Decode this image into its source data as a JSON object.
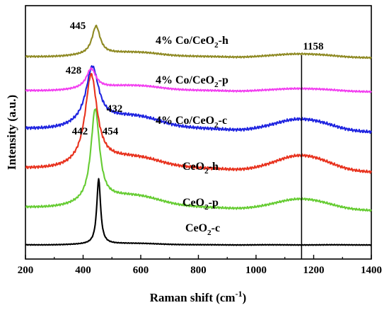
{
  "chart_data": {
    "type": "line",
    "xlabel": "Raman shift (cm",
    "xlabel_sup": "-1",
    "xlabel_end": ")",
    "ylabel": "Intensity (a.u.)",
    "xlim": [
      200,
      1400
    ],
    "xticks": [
      "200",
      "400",
      "600",
      "800",
      "1000",
      "1200",
      "1400"
    ],
    "yticks_shown": false,
    "grid": false,
    "reference_line": {
      "x": 1158,
      "label": "1158"
    },
    "series": [
      {
        "id": "ceo2-c",
        "label_main": "CeO",
        "label_sub": "2",
        "label_end": "-c",
        "color": "#000000",
        "peak_x": 454,
        "peak_label": "454"
      },
      {
        "id": "ceo2-p",
        "label_main": "CeO",
        "label_sub": "2",
        "label_end": "-p",
        "color": "#66cc33",
        "peak_x": 442,
        "peak_label": "442"
      },
      {
        "id": "ceo2-h",
        "label_main": "CeO",
        "label_sub": "2",
        "label_end": "-h",
        "color": "#e8321e",
        "peak_x": 428,
        "peak_label": ""
      },
      {
        "id": "co-ceo2-c",
        "label_main": "4% Co/CeO",
        "label_sub": "2",
        "label_end": "-c",
        "color": "#1f24e0",
        "peak_x": 432,
        "peak_label": "432"
      },
      {
        "id": "co-ceo2-p",
        "label_main": "4% Co/CeO",
        "label_sub": "2",
        "label_end": "-p",
        "color": "#f23ff0",
        "peak_x": 428,
        "peak_label": "428"
      },
      {
        "id": "co-ceo2-h",
        "label_main": "4% Co/CeO",
        "label_sub": "2",
        "label_end": "-h",
        "color": "#8f8a24",
        "peak_x": 445,
        "peak_label": "445"
      }
    ]
  }
}
